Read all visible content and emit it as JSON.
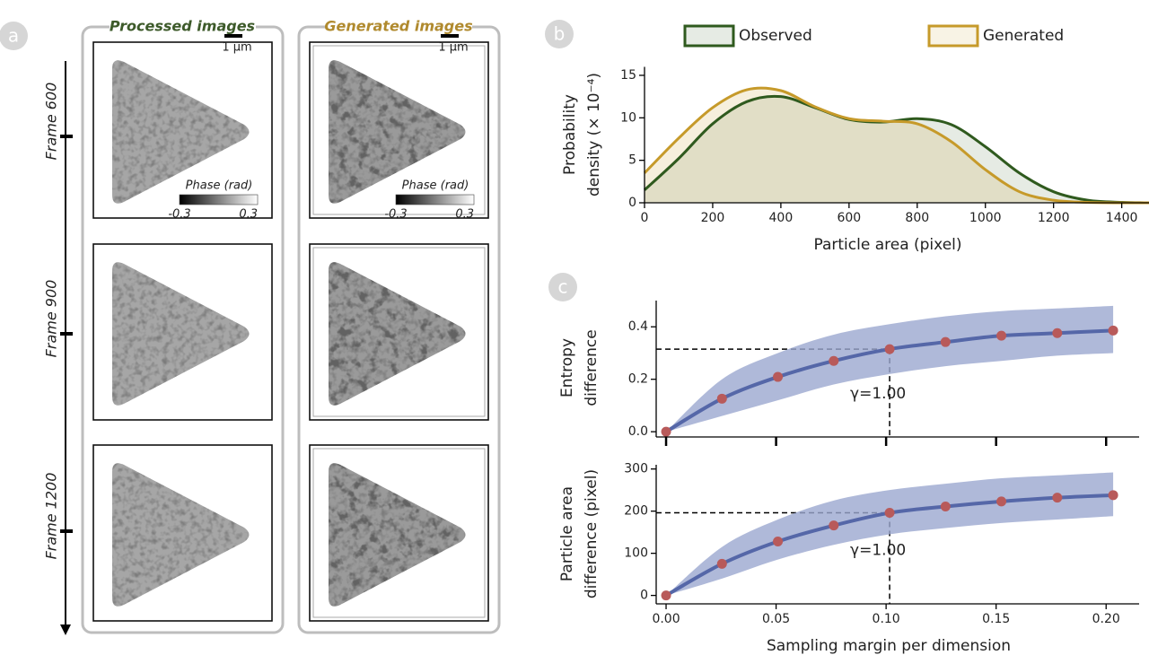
{
  "panel_labels": [
    "a",
    "b",
    "c"
  ],
  "panel_a": {
    "columns": [
      "Processed images",
      "Generated images"
    ],
    "frames": [
      "Frame 600",
      "Frame 900",
      "Frame 1200"
    ],
    "scale_bar": "1 µm",
    "colorbar": {
      "title": "Phase (rad)",
      "min_label": "-0.3",
      "max_label": "0.3"
    }
  },
  "chart_data": [
    {
      "type": "area",
      "x": [
        0,
        100,
        200,
        300,
        400,
        500,
        600,
        700,
        800,
        900,
        1000,
        1100,
        1200,
        1300,
        1400,
        1480
      ],
      "series": [
        {
          "name": "Observed",
          "color": "#2f5a1e",
          "values": [
            1.5,
            5.2,
            9.3,
            11.9,
            12.5,
            11.2,
            9.8,
            9.5,
            9.9,
            9.2,
            6.6,
            3.5,
            1.3,
            0.3,
            0.05,
            0
          ]
        },
        {
          "name": "Generated",
          "color": "#c69a2a",
          "values": [
            3.5,
            7.6,
            11.2,
            13.3,
            13.2,
            11.3,
            9.9,
            9.6,
            9.3,
            7.2,
            3.9,
            1.3,
            0.3,
            0.05,
            0,
            0
          ]
        }
      ],
      "xlabel": "Particle area (pixel)",
      "ylabel": [
        "Probability",
        "density (× 10⁻⁴)"
      ],
      "xlim": [
        0,
        1480
      ],
      "ylim": [
        0,
        16
      ],
      "xticks": [
        0,
        200,
        400,
        600,
        800,
        1000,
        1200,
        1400
      ],
      "yticks": [
        0,
        5,
        10,
        15
      ],
      "legend": "top"
    },
    {
      "type": "line",
      "x": [
        0,
        0.0254,
        0.0508,
        0.0762,
        0.1016,
        0.127,
        0.1524,
        0.1778,
        0.2032
      ],
      "series": [
        {
          "color": "#5567a8",
          "marker_color": "#b85a5a",
          "band_color": "#9ba7cf",
          "values": [
            0,
            0.126,
            0.209,
            0.27,
            0.315,
            0.342,
            0.366,
            0.376,
            0.386
          ],
          "lower": [
            0,
            0.06,
            0.12,
            0.18,
            0.22,
            0.25,
            0.27,
            0.29,
            0.3
          ],
          "upper": [
            0,
            0.2,
            0.3,
            0.37,
            0.41,
            0.44,
            0.46,
            0.47,
            0.48
          ]
        }
      ],
      "ylabel": [
        "Entropy",
        "difference"
      ],
      "xlim": [
        -0.0045,
        0.215
      ],
      "ylim": [
        -0.02,
        0.5
      ],
      "xticks": [
        0,
        0.05,
        0.1,
        0.15,
        0.2
      ],
      "xtick_labels": false,
      "yticks": [
        {
          "value": 0,
          "label": "0.0"
        },
        0.2,
        0.4
      ],
      "annotation": {
        "text": "γ=1.00",
        "x": 0.1016,
        "y": 0.315
      }
    },
    {
      "type": "line",
      "x": [
        0,
        0.0254,
        0.0508,
        0.0762,
        0.1016,
        0.127,
        0.1524,
        0.1778,
        0.2032
      ],
      "series": [
        {
          "color": "#5567a8",
          "marker_color": "#b85a5a",
          "band_color": "#9ba7cf",
          "values": [
            0,
            75,
            128,
            166,
            196,
            211,
            223,
            232,
            238
          ],
          "lower": [
            0,
            40,
            85,
            120,
            145,
            160,
            172,
            180,
            188
          ],
          "upper": [
            0,
            115,
            180,
            225,
            250,
            265,
            278,
            285,
            292
          ]
        }
      ],
      "xlabel": "Sampling margin per dimension",
      "ylabel": [
        "Particle area",
        "difference (pixel)"
      ],
      "xlim": [
        -0.0045,
        0.215
      ],
      "ylim": [
        -20,
        310
      ],
      "xticks": [
        {
          "value": 0,
          "label": "0.00"
        },
        0.05,
        {
          "value": 0.1,
          "label": "0.10"
        },
        0.15,
        {
          "value": 0.2,
          "label": "0.20"
        }
      ],
      "yticks": [
        0,
        100,
        200,
        300
      ],
      "annotation": {
        "text": "γ=1.00",
        "x": 0.1016,
        "y": 196
      }
    }
  ]
}
